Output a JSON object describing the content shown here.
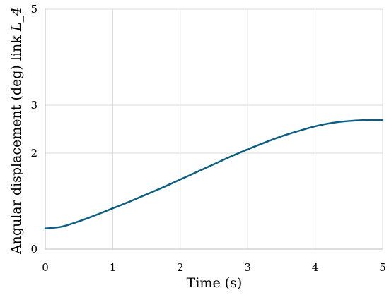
{
  "chart_data": {
    "type": "line",
    "xlabel": "Time (s)",
    "ylabel_prefix": "Angular displacement (deg) link ",
    "ylabel_italic": "L_4",
    "xlim": [
      0,
      5
    ],
    "ylim": [
      0,
      5
    ],
    "x_ticks": [
      "0",
      "1",
      "2",
      "3",
      "4",
      "5"
    ],
    "y_ticks": [
      "0",
      "2",
      "3",
      "5"
    ],
    "y_tick_values": [
      0,
      2,
      3,
      5
    ],
    "grid": true,
    "line_color": "#0b5f85",
    "series": [
      {
        "x": [
          0,
          0.25,
          0.5,
          0.75,
          1,
          1.25,
          1.5,
          1.75,
          2,
          2.25,
          2.5,
          2.75,
          3,
          3.25,
          3.5,
          3.75,
          4,
          4.25,
          4.5,
          4.75,
          5
        ],
        "y": [
          0.43,
          0.47,
          0.58,
          0.71,
          0.85,
          0.99,
          1.14,
          1.29,
          1.45,
          1.61,
          1.77,
          1.93,
          2.08,
          2.22,
          2.35,
          2.46,
          2.56,
          2.63,
          2.67,
          2.69,
          2.69
        ]
      }
    ]
  }
}
